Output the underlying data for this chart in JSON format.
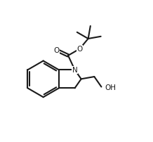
{
  "background_color": "#ffffff",
  "line_color": "#1a1a1a",
  "line_width": 1.5,
  "figsize": [
    2.18,
    2.03
  ],
  "dpi": 100,
  "xlim": [
    0.0,
    10.0
  ],
  "ylim": [
    1.0,
    9.5
  ]
}
